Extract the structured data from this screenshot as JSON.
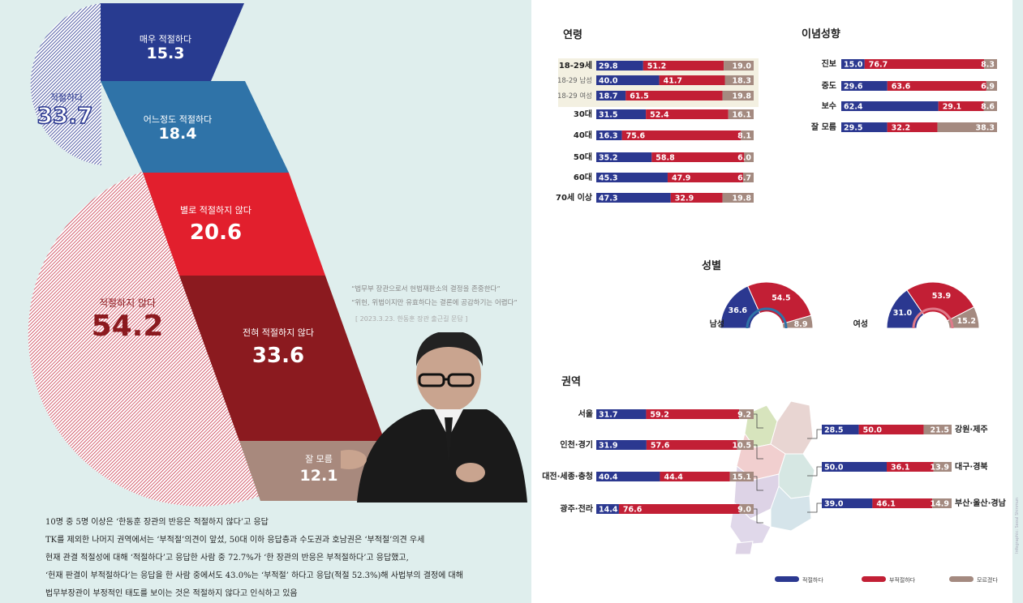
{
  "colors": {
    "appropriate": "#2b3890",
    "inappropriate": "#c21f35",
    "unknown": "#a48a80",
    "very_appropriate": "#283b90",
    "somewhat_appropriate": "#2f73a8",
    "not_very_appropriate": "#e21f2d",
    "not_at_all_appropriate": "#8b1a1f",
    "dont_know": "#a8897d"
  },
  "main_chart": {
    "summary_appropriate": {
      "label": "적절하다",
      "value": "33.7"
    },
    "summary_inappropriate": {
      "label": "적절하지 않다",
      "value": "54.2"
    },
    "segments": [
      {
        "label": "매우 적절하다",
        "value": "15.3"
      },
      {
        "label": "어느정도 적절하다",
        "value": "18.4"
      },
      {
        "label": "별로 적절하지 않다",
        "value": "20.6"
      },
      {
        "label": "전혀 적절하지 않다",
        "value": "33.6"
      },
      {
        "label": "잘 모름",
        "value": "12.1"
      }
    ]
  },
  "quote": {
    "line1": "“법무부 장관으로서 헌법재판소의 결정을 존중한다”",
    "line2": "“위헌, 위법이지만 유효하다는 결론에 공감하기는 어렵다”",
    "source": "[ 2023.3.23. 한동훈 장관 출근길 문답 ]"
  },
  "summary_lines": [
    "10명 중 5명 이상은 ‘한동훈 장관의 반응은 적절하지 않다’고 응답",
    "TK를 제외한 나머지 권역에서는 ‘부적절’의견이 앞섰, 50대 이하 응답층과 수도권과 호남권은 ‘부적절’의견 우세",
    "현재 관결 적절성에 대해 ‘적절하다’고 응답한 사람 중 72.7%가 ‘한 장관의 반응은 부적절하다’고 응답했고,",
    "‘헌재 판결이 부적절하다’는 응답을 한 사람 중에서도 43.0%는 ‘부적절’ 하다고 응답(적절 52.3%)해 사법부의 결정에 대해",
    "법무부장관이 부정적인 태도를 보이는 것은 적절하지 않다고 인식하고 있음"
  ],
  "sections": {
    "age": "연령",
    "ideology": "이념성향",
    "gender": "성별",
    "region": "권역"
  },
  "legend": [
    "적절하다",
    "부적절하다",
    "모르겠다"
  ],
  "edge_credit": "Infographic: Seoul Shinmun",
  "chart_data": [
    {
      "type": "bar",
      "title": "연령",
      "categories": [
        "18-29세",
        "18-29 남성",
        "18-29 여성",
        "30대",
        "40대",
        "50대",
        "60대",
        "70세 이상"
      ],
      "series": [
        {
          "name": "적절하다",
          "values": [
            29.8,
            40.0,
            18.7,
            31.5,
            16.3,
            35.2,
            45.3,
            47.3
          ]
        },
        {
          "name": "부적절하다",
          "values": [
            51.2,
            41.7,
            61.5,
            52.4,
            75.6,
            58.8,
            47.9,
            32.9
          ]
        },
        {
          "name": "모르겠다",
          "values": [
            19.0,
            18.3,
            19.8,
            16.1,
            8.1,
            6.0,
            6.7,
            19.8
          ]
        }
      ],
      "stacked": true
    },
    {
      "type": "bar",
      "title": "이념성향",
      "categories": [
        "진보",
        "중도",
        "보수",
        "잘 모름"
      ],
      "series": [
        {
          "name": "적절하다",
          "values": [
            15.0,
            29.6,
            62.4,
            29.5
          ]
        },
        {
          "name": "부적절하다",
          "values": [
            76.7,
            63.6,
            29.1,
            32.2
          ]
        },
        {
          "name": "모르겠다",
          "values": [
            8.3,
            6.9,
            8.6,
            38.3
          ]
        }
      ],
      "stacked": true
    },
    {
      "type": "pie",
      "title": "성별",
      "categories": [
        "남성",
        "여성"
      ],
      "series": [
        {
          "name": "적절하다",
          "values": [
            36.6,
            31.0
          ]
        },
        {
          "name": "부적절하다",
          "values": [
            54.5,
            53.9
          ]
        },
        {
          "name": "모르겠다",
          "values": [
            8.9,
            15.2
          ]
        }
      ]
    },
    {
      "type": "bar",
      "title": "권역",
      "categories": [
        "서울",
        "인천·경기",
        "대전·세종·충청",
        "광주·전라",
        "강원·제주",
        "대구·경북",
        "부산·울산·경남"
      ],
      "series": [
        {
          "name": "적절하다",
          "values": [
            31.7,
            31.9,
            40.4,
            14.4,
            28.5,
            50.0,
            39.0
          ]
        },
        {
          "name": "부적절하다",
          "values": [
            59.2,
            57.6,
            44.4,
            76.6,
            50.0,
            36.1,
            46.1
          ]
        },
        {
          "name": "모르겠다",
          "values": [
            9.2,
            10.5,
            15.1,
            9.0,
            21.5,
            13.9,
            14.9
          ]
        }
      ],
      "stacked": true
    }
  ]
}
